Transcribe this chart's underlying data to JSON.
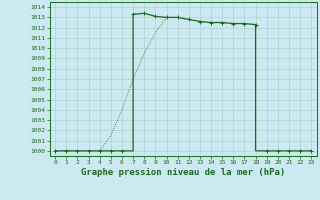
{
  "x_solid": [
    0,
    1,
    2,
    3,
    4,
    5,
    6,
    7,
    7,
    8,
    9,
    10,
    11,
    12,
    13,
    14,
    15,
    16,
    17,
    18,
    18,
    19,
    20,
    21,
    22,
    23
  ],
  "y_solid": [
    1000,
    1000,
    1000,
    1000,
    1000,
    1000,
    1000,
    1000,
    1013.3,
    1013.4,
    1013.1,
    1013.0,
    1013.0,
    1012.8,
    1012.6,
    1012.5,
    1012.5,
    1012.4,
    1012.4,
    1012.3,
    1000,
    1000,
    1000,
    1000,
    1000,
    1000
  ],
  "x_dotted": [
    0,
    1,
    2,
    3,
    4,
    5,
    6,
    7,
    8,
    9,
    10
  ],
  "y_dotted": [
    1000,
    1000,
    1000,
    1000,
    1000,
    1001.5,
    1004,
    1007,
    1009.5,
    1011.5,
    1013.0
  ],
  "x_markers_solid": [
    0,
    1,
    2,
    3,
    4,
    5,
    6,
    7,
    8,
    9,
    10,
    11,
    12,
    13,
    14,
    15,
    16,
    17,
    18,
    19,
    20,
    21,
    22,
    23
  ],
  "y_markers_solid": [
    1000,
    1000,
    1000,
    1000,
    1000,
    1000,
    1000,
    1013.3,
    1013.4,
    1013.1,
    1013.0,
    1013.0,
    1012.8,
    1012.6,
    1012.5,
    1012.5,
    1012.4,
    1012.4,
    1012.3,
    1000,
    1000,
    1000,
    1000,
    1000
  ],
  "line_color": "#1a6b1a",
  "marker": "+",
  "marker_size": 3,
  "bg_color": "#cce8f0",
  "grid_major_color": "#aacccc",
  "grid_minor_color": "#bbdddd",
  "xlabel": "Graphe pression niveau de la mer (hPa)",
  "ylim": [
    999.5,
    1014.5
  ],
  "xlim": [
    -0.5,
    23.5
  ],
  "yticks": [
    1000,
    1001,
    1002,
    1003,
    1004,
    1005,
    1006,
    1007,
    1008,
    1009,
    1010,
    1011,
    1012,
    1013,
    1014
  ],
  "xticks": [
    0,
    1,
    2,
    3,
    4,
    5,
    6,
    7,
    8,
    9,
    10,
    11,
    12,
    13,
    14,
    15,
    16,
    17,
    18,
    19,
    20,
    21,
    22,
    23
  ],
  "tick_fontsize": 4.5,
  "label_fontsize": 6.5
}
